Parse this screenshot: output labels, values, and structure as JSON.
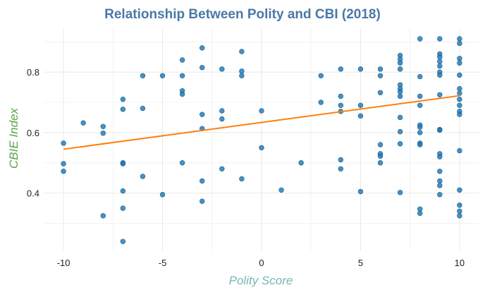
{
  "chart_data": {
    "type": "scatter",
    "title": "Relationship Between Polity and CBI (2018)",
    "xlabel": "Polity Score",
    "ylabel": "CBIE Index",
    "xlim": [
      -11,
      11
    ],
    "ylim": [
      0.21,
      0.945
    ],
    "xticks": [
      -10,
      -5,
      0,
      5,
      10
    ],
    "yticks": [
      0.4,
      0.6,
      0.8
    ],
    "grid": true,
    "colors": {
      "points": "#1f77b4",
      "trend": "#ff7f0e",
      "title": "#4a78a8",
      "ylabel": "#5aa64a",
      "xlabel": "#76b7b2"
    },
    "trendline": {
      "x": [
        -10,
        10
      ],
      "y": [
        0.545,
        0.722
      ]
    },
    "points": [
      [
        -10,
        0.565
      ],
      [
        -10,
        0.497
      ],
      [
        -10,
        0.472
      ],
      [
        -9,
        0.632
      ],
      [
        -8,
        0.62
      ],
      [
        -8,
        0.598
      ],
      [
        -8,
        0.325
      ],
      [
        -7,
        0.71
      ],
      [
        -7,
        0.677
      ],
      [
        -7,
        0.5
      ],
      [
        -7,
        0.497
      ],
      [
        -7,
        0.407
      ],
      [
        -7,
        0.35
      ],
      [
        -7,
        0.24
      ],
      [
        -6,
        0.788
      ],
      [
        -6,
        0.68
      ],
      [
        -6,
        0.455
      ],
      [
        -5,
        0.788
      ],
      [
        -5,
        0.395
      ],
      [
        -4,
        0.84
      ],
      [
        -4,
        0.788
      ],
      [
        -4,
        0.738
      ],
      [
        -4,
        0.727
      ],
      [
        -4,
        0.5
      ],
      [
        -3,
        0.88
      ],
      [
        -3,
        0.815
      ],
      [
        -3,
        0.66
      ],
      [
        -3,
        0.613
      ],
      [
        -3,
        0.44
      ],
      [
        -3,
        0.373
      ],
      [
        -2,
        0.81
      ],
      [
        -2,
        0.672
      ],
      [
        -2,
        0.645
      ],
      [
        -2,
        0.48
      ],
      [
        -1,
        0.868
      ],
      [
        -1,
        0.803
      ],
      [
        -1,
        0.788
      ],
      [
        -1,
        0.447
      ],
      [
        0,
        0.672
      ],
      [
        0,
        0.55
      ],
      [
        1,
        0.41
      ],
      [
        2,
        0.5
      ],
      [
        3,
        0.788
      ],
      [
        3,
        0.7
      ],
      [
        4,
        0.81
      ],
      [
        4,
        0.72
      ],
      [
        4,
        0.69
      ],
      [
        4,
        0.67
      ],
      [
        4,
        0.51
      ],
      [
        4,
        0.48
      ],
      [
        5,
        0.81
      ],
      [
        5,
        0.69
      ],
      [
        5,
        0.655
      ],
      [
        5,
        0.405
      ],
      [
        6,
        0.81
      ],
      [
        6,
        0.788
      ],
      [
        6,
        0.732
      ],
      [
        6,
        0.56
      ],
      [
        6,
        0.53
      ],
      [
        6,
        0.522
      ],
      [
        6,
        0.5
      ],
      [
        7,
        0.855
      ],
      [
        7,
        0.842
      ],
      [
        7,
        0.83
      ],
      [
        7,
        0.81
      ],
      [
        7,
        0.758
      ],
      [
        7,
        0.745
      ],
      [
        7,
        0.735
      ],
      [
        7,
        0.72
      ],
      [
        7,
        0.65
      ],
      [
        7,
        0.603
      ],
      [
        7,
        0.563
      ],
      [
        7,
        0.402
      ],
      [
        8,
        0.91
      ],
      [
        8,
        0.785
      ],
      [
        8,
        0.72
      ],
      [
        8,
        0.69
      ],
      [
        8,
        0.625
      ],
      [
        8,
        0.618
      ],
      [
        8,
        0.6
      ],
      [
        8,
        0.565
      ],
      [
        8,
        0.56
      ],
      [
        8,
        0.347
      ],
      [
        8,
        0.333
      ],
      [
        9,
        0.91
      ],
      [
        9,
        0.86
      ],
      [
        9,
        0.85
      ],
      [
        9,
        0.835
      ],
      [
        9,
        0.82
      ],
      [
        9,
        0.8
      ],
      [
        9,
        0.79
      ],
      [
        9,
        0.725
      ],
      [
        9,
        0.61
      ],
      [
        9,
        0.608
      ],
      [
        9,
        0.53
      ],
      [
        9,
        0.52
      ],
      [
        9,
        0.472
      ],
      [
        9,
        0.44
      ],
      [
        9,
        0.425
      ],
      [
        9,
        0.395
      ],
      [
        10,
        0.91
      ],
      [
        10,
        0.895
      ],
      [
        10,
        0.845
      ],
      [
        10,
        0.83
      ],
      [
        10,
        0.79
      ],
      [
        10,
        0.745
      ],
      [
        10,
        0.73
      ],
      [
        10,
        0.71
      ],
      [
        10,
        0.69
      ],
      [
        10,
        0.67
      ],
      [
        10,
        0.66
      ],
      [
        10,
        0.54
      ],
      [
        10,
        0.41
      ],
      [
        10,
        0.36
      ],
      [
        10,
        0.34
      ],
      [
        10,
        0.325
      ]
    ]
  }
}
